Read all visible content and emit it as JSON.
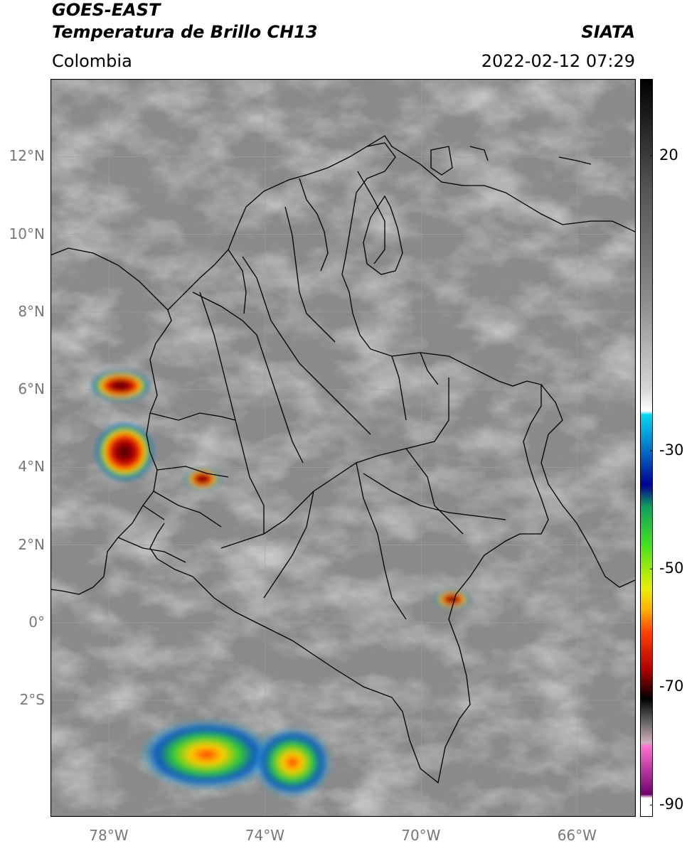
{
  "header": {
    "title_line1": "GOES-EAST",
    "title_line2": "Temperatura de Brillo CH13",
    "region": "Colombia",
    "source": "SIATA",
    "datetime": "2022-02-12 07:29"
  },
  "map": {
    "lon_range": [
      -79.5,
      -64.5
    ],
    "lat_range": [
      -5.0,
      14.0
    ],
    "lat_ticks": [
      {
        "value": 12,
        "label": "12°N"
      },
      {
        "value": 10,
        "label": "10°N"
      },
      {
        "value": 8,
        "label": "8°N"
      },
      {
        "value": 6,
        "label": "6°N"
      },
      {
        "value": 4,
        "label": "4°N"
      },
      {
        "value": 2,
        "label": "2°N"
      },
      {
        "value": 0,
        "label": "0°"
      },
      {
        "value": -2,
        "label": "2°S"
      }
    ],
    "lon_ticks": [
      {
        "value": -78,
        "label": "78°W"
      },
      {
        "value": -74,
        "label": "74°W"
      },
      {
        "value": -70,
        "label": "70°W"
      },
      {
        "value": -66,
        "label": "66°W"
      }
    ],
    "colors": {
      "background_gray": "#8a8a8a",
      "border": "#000000",
      "grid": "#a0a0a0"
    }
  },
  "colorbar": {
    "range": [
      -92,
      33
    ],
    "ticks": [
      {
        "value": 20,
        "label": "20"
      },
      {
        "value": -30,
        "label": "-30"
      },
      {
        "value": -50,
        "label": "-50"
      },
      {
        "value": -70,
        "label": "-70"
      },
      {
        "value": -90,
        "label": "-90"
      }
    ]
  },
  "storm_cells": [
    {
      "name": "pacific-cell-north",
      "lon": -77.7,
      "lat": 6.1,
      "rx": 0.75,
      "ry": 0.4
    },
    {
      "name": "pacific-cell-south",
      "lon": -77.6,
      "lat": 4.4,
      "rx": 0.75,
      "ry": 0.75
    },
    {
      "name": "valle-cell",
      "lon": -75.6,
      "lat": 3.7,
      "rx": 0.45,
      "ry": 0.3
    },
    {
      "name": "amazon-band-a",
      "lon": -75.5,
      "lat": -3.4,
      "rx": 1.7,
      "ry": 0.9
    },
    {
      "name": "amazon-band-b",
      "lon": -73.3,
      "lat": -3.6,
      "rx": 1.0,
      "ry": 0.9
    },
    {
      "name": "guaviare-cell",
      "lon": -69.2,
      "lat": 0.6,
      "rx": 0.45,
      "ry": 0.25
    }
  ]
}
